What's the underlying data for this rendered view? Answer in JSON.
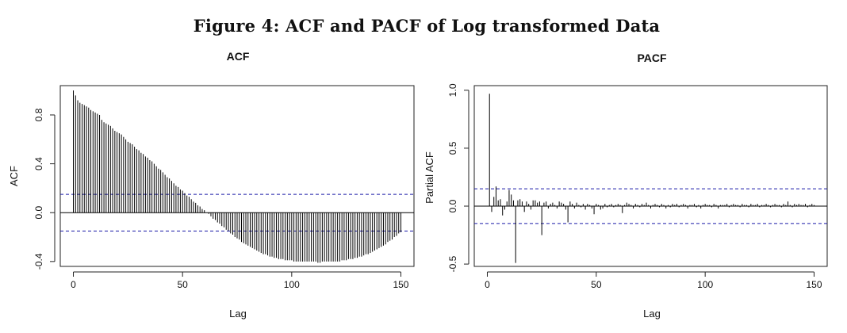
{
  "figure": {
    "title": "Figure 4: ACF and PACF of Log transformed Data"
  },
  "colors": {
    "confidence_band": "#1a1aa6",
    "bars": "#000000"
  },
  "chart_data": [
    {
      "type": "bar",
      "title": "ACF",
      "xlabel": "Lag",
      "ylabel": "ACF",
      "xlim": [
        0,
        150
      ],
      "ylim": [
        -0.42,
        1.0
      ],
      "xticks": [
        0,
        50,
        100,
        150
      ],
      "yticks": [
        -0.4,
        0.0,
        0.4,
        0.8
      ],
      "ytick_labels": [
        "-0.4",
        "0.0",
        "0.4",
        "0.8"
      ],
      "confidence_bound": 0.15,
      "grid": false,
      "x": [
        0,
        1,
        2,
        3,
        4,
        5,
        6,
        7,
        8,
        9,
        10,
        11,
        12,
        13,
        14,
        15,
        16,
        17,
        18,
        19,
        20,
        21,
        22,
        23,
        24,
        25,
        26,
        27,
        28,
        29,
        30,
        31,
        32,
        33,
        34,
        35,
        36,
        37,
        38,
        39,
        40,
        41,
        42,
        43,
        44,
        45,
        46,
        47,
        48,
        49,
        50,
        51,
        52,
        53,
        54,
        55,
        56,
        57,
        58,
        59,
        60,
        61,
        62,
        63,
        64,
        65,
        66,
        67,
        68,
        69,
        70,
        71,
        72,
        73,
        74,
        75,
        76,
        77,
        78,
        79,
        80,
        81,
        82,
        83,
        84,
        85,
        86,
        87,
        88,
        89,
        90,
        91,
        92,
        93,
        94,
        95,
        96,
        97,
        98,
        99,
        100,
        101,
        102,
        103,
        104,
        105,
        106,
        107,
        108,
        109,
        110,
        111,
        112,
        113,
        114,
        115,
        116,
        117,
        118,
        119,
        120,
        121,
        122,
        123,
        124,
        125,
        126,
        127,
        128,
        129,
        130,
        131,
        132,
        133,
        134,
        135,
        136,
        137,
        138,
        139,
        140,
        141,
        142,
        143,
        144,
        145,
        146,
        147,
        148,
        149,
        150
      ],
      "values": [
        1.0,
        0.96,
        0.92,
        0.9,
        0.89,
        0.88,
        0.87,
        0.86,
        0.84,
        0.83,
        0.82,
        0.81,
        0.8,
        0.76,
        0.74,
        0.73,
        0.72,
        0.71,
        0.69,
        0.67,
        0.66,
        0.65,
        0.64,
        0.62,
        0.6,
        0.58,
        0.57,
        0.56,
        0.54,
        0.52,
        0.51,
        0.49,
        0.48,
        0.46,
        0.45,
        0.43,
        0.42,
        0.4,
        0.38,
        0.36,
        0.35,
        0.33,
        0.31,
        0.29,
        0.28,
        0.26,
        0.24,
        0.22,
        0.21,
        0.19,
        0.18,
        0.16,
        0.14,
        0.13,
        0.11,
        0.09,
        0.08,
        0.06,
        0.05,
        0.03,
        0.02,
        0.0,
        -0.01,
        -0.03,
        -0.05,
        -0.06,
        -0.08,
        -0.09,
        -0.11,
        -0.12,
        -0.14,
        -0.15,
        -0.17,
        -0.18,
        -0.2,
        -0.21,
        -0.22,
        -0.24,
        -0.25,
        -0.26,
        -0.27,
        -0.28,
        -0.29,
        -0.3,
        -0.31,
        -0.32,
        -0.33,
        -0.34,
        -0.34,
        -0.35,
        -0.36,
        -0.36,
        -0.37,
        -0.37,
        -0.38,
        -0.38,
        -0.38,
        -0.39,
        -0.39,
        -0.39,
        -0.39,
        -0.4,
        -0.4,
        -0.4,
        -0.4,
        -0.4,
        -0.4,
        -0.4,
        -0.4,
        -0.4,
        -0.4,
        -0.4,
        -0.41,
        -0.41,
        -0.4,
        -0.4,
        -0.4,
        -0.4,
        -0.4,
        -0.4,
        -0.4,
        -0.4,
        -0.4,
        -0.39,
        -0.39,
        -0.39,
        -0.38,
        -0.38,
        -0.38,
        -0.37,
        -0.37,
        -0.36,
        -0.36,
        -0.35,
        -0.34,
        -0.34,
        -0.33,
        -0.32,
        -0.31,
        -0.3,
        -0.29,
        -0.28,
        -0.27,
        -0.26,
        -0.24,
        -0.23,
        -0.22,
        -0.2,
        -0.19,
        -0.17,
        -0.16
      ]
    },
    {
      "type": "bar",
      "title": "PACF",
      "xlabel": "Lag",
      "ylabel": "Partial ACF",
      "xlim": [
        0,
        150
      ],
      "ylim": [
        -0.5,
        1.0
      ],
      "xticks": [
        0,
        50,
        100,
        150
      ],
      "yticks": [
        -0.5,
        0.0,
        0.5,
        1.0
      ],
      "ytick_labels": [
        "-0.5",
        "0.0",
        "0.5",
        "1.0"
      ],
      "confidence_bound": 0.15,
      "grid": false,
      "x": [
        1,
        2,
        3,
        4,
        5,
        6,
        7,
        8,
        9,
        10,
        11,
        12,
        13,
        14,
        15,
        16,
        17,
        18,
        19,
        20,
        21,
        22,
        23,
        24,
        25,
        26,
        27,
        28,
        29,
        30,
        31,
        32,
        33,
        34,
        35,
        36,
        37,
        38,
        39,
        40,
        41,
        42,
        43,
        44,
        45,
        46,
        47,
        48,
        49,
        50,
        51,
        52,
        53,
        54,
        55,
        56,
        57,
        58,
        59,
        60,
        61,
        62,
        63,
        64,
        65,
        66,
        67,
        68,
        69,
        70,
        71,
        72,
        73,
        74,
        75,
        76,
        77,
        78,
        79,
        80,
        81,
        82,
        83,
        84,
        85,
        86,
        87,
        88,
        89,
        90,
        91,
        92,
        93,
        94,
        95,
        96,
        97,
        98,
        99,
        100,
        101,
        102,
        103,
        104,
        105,
        106,
        107,
        108,
        109,
        110,
        111,
        112,
        113,
        114,
        115,
        116,
        117,
        118,
        119,
        120,
        121,
        122,
        123,
        124,
        125,
        126,
        127,
        128,
        129,
        130,
        131,
        132,
        133,
        134,
        135,
        136,
        137,
        138,
        139,
        140,
        141,
        142,
        143,
        144,
        145,
        146,
        147,
        148,
        149,
        150
      ],
      "values": [
        0.97,
        -0.05,
        0.08,
        0.17,
        0.05,
        0.06,
        -0.08,
        -0.03,
        0.04,
        0.14,
        0.1,
        0.05,
        -0.49,
        0.05,
        0.06,
        0.04,
        -0.05,
        0.04,
        0.02,
        -0.03,
        0.05,
        0.05,
        0.03,
        0.04,
        -0.25,
        0.03,
        0.04,
        -0.02,
        0.02,
        0.03,
        0.01,
        -0.02,
        0.04,
        0.03,
        0.02,
        -0.03,
        -0.14,
        0.04,
        0.02,
        -0.02,
        0.03,
        0.01,
        -0.01,
        0.02,
        -0.03,
        0.02,
        0.01,
        -0.02,
        -0.07,
        0.02,
        0.01,
        -0.03,
        -0.02,
        0.02,
        -0.01,
        0.01,
        0.02,
        -0.01,
        0.01,
        0.02,
        0.01,
        -0.06,
        0.01,
        0.03,
        0.02,
        0.01,
        -0.02,
        0.02,
        0.01,
        -0.01,
        0.02,
        0.01,
        0.03,
        0.01,
        -0.02,
        0.01,
        0.02,
        0.01,
        -0.01,
        0.02,
        0.01,
        -0.02,
        0.01,
        -0.01,
        0.02,
        0.01,
        0.02,
        -0.01,
        0.01,
        0.02,
        0.01,
        -0.02,
        0.01,
        0.01,
        0.02,
        -0.01,
        0.01,
        -0.02,
        0.01,
        0.02,
        0.01,
        0.01,
        -0.01,
        0.02,
        0.01,
        -0.02,
        0.01,
        0.01,
        0.01,
        0.02,
        -0.01,
        0.01,
        0.02,
        0.01,
        0.01,
        -0.01,
        0.02,
        0.01,
        0.01,
        -0.01,
        0.02,
        0.01,
        0.01,
        0.02,
        -0.01,
        0.01,
        0.01,
        0.02,
        0.01,
        -0.01,
        0.01,
        0.02,
        0.01,
        0.01,
        -0.01,
        0.02,
        0.01,
        0.04,
        0.01,
        -0.01,
        0.02,
        0.01,
        0.02,
        0.01,
        0.01,
        0.02,
        -0.01,
        0.01,
        0.02,
        0.01
      ]
    }
  ]
}
